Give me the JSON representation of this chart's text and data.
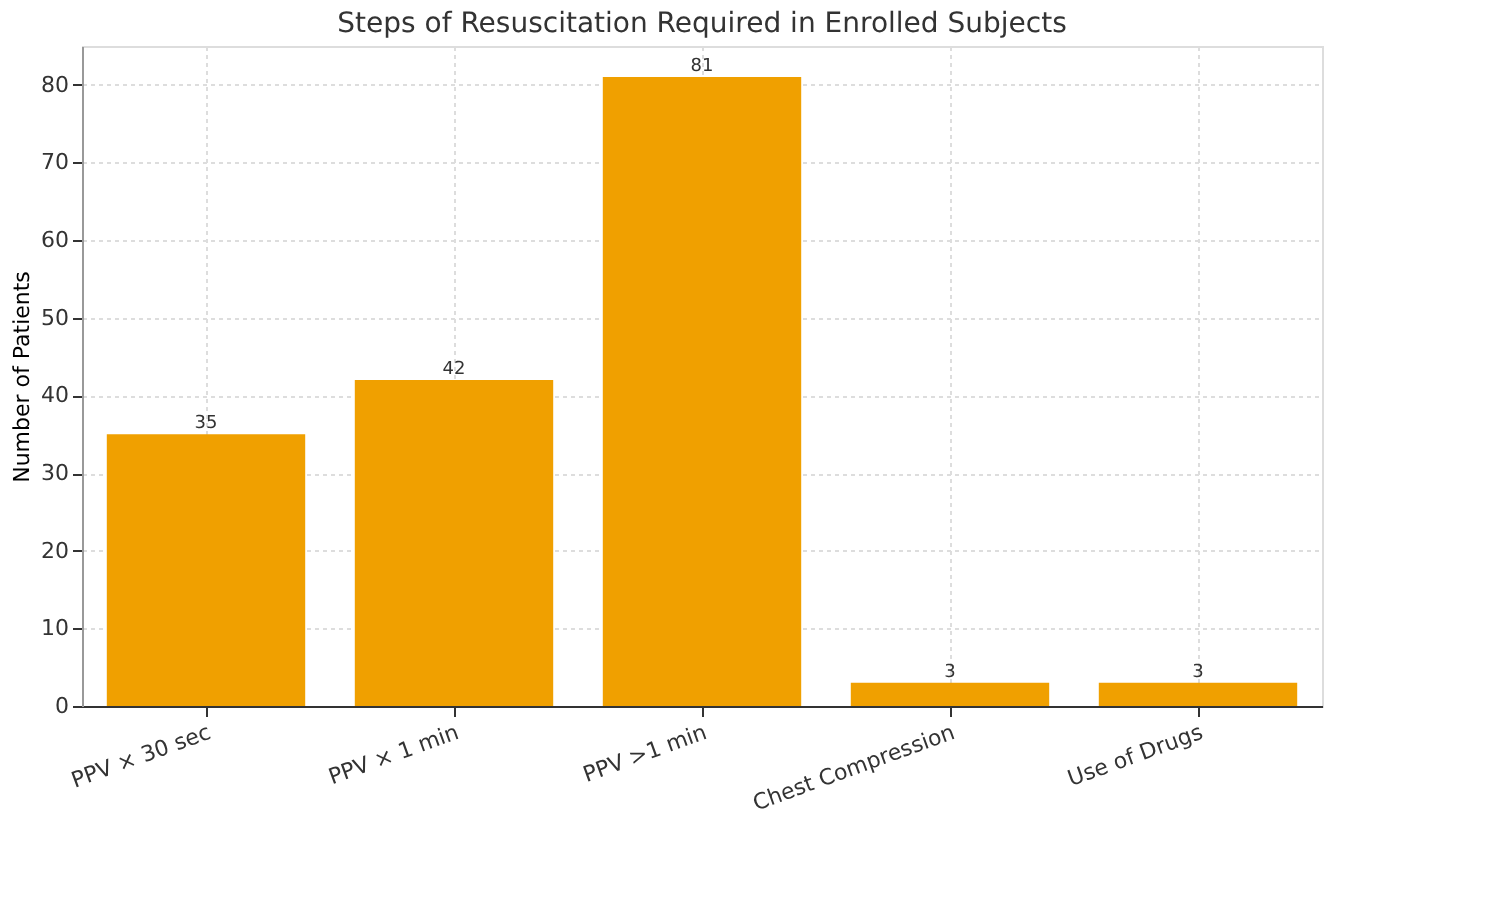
{
  "chart_data": {
    "type": "bar",
    "title": "Steps of Resuscitation Required in Enrolled Subjects",
    "ylabel": "Number of Patients",
    "categories": [
      "PPV × 30 sec",
      "PPV × 1 min",
      "PPV >1 min",
      "Chest Compression",
      "Use of Drugs"
    ],
    "values": [
      35,
      42,
      81,
      3,
      3
    ],
    "color": "#f0a000",
    "ylim": [
      0,
      85
    ],
    "yticks": [
      0,
      10,
      20,
      30,
      40,
      50,
      60,
      70,
      80
    ],
    "grid": true,
    "data_labels": true
  }
}
